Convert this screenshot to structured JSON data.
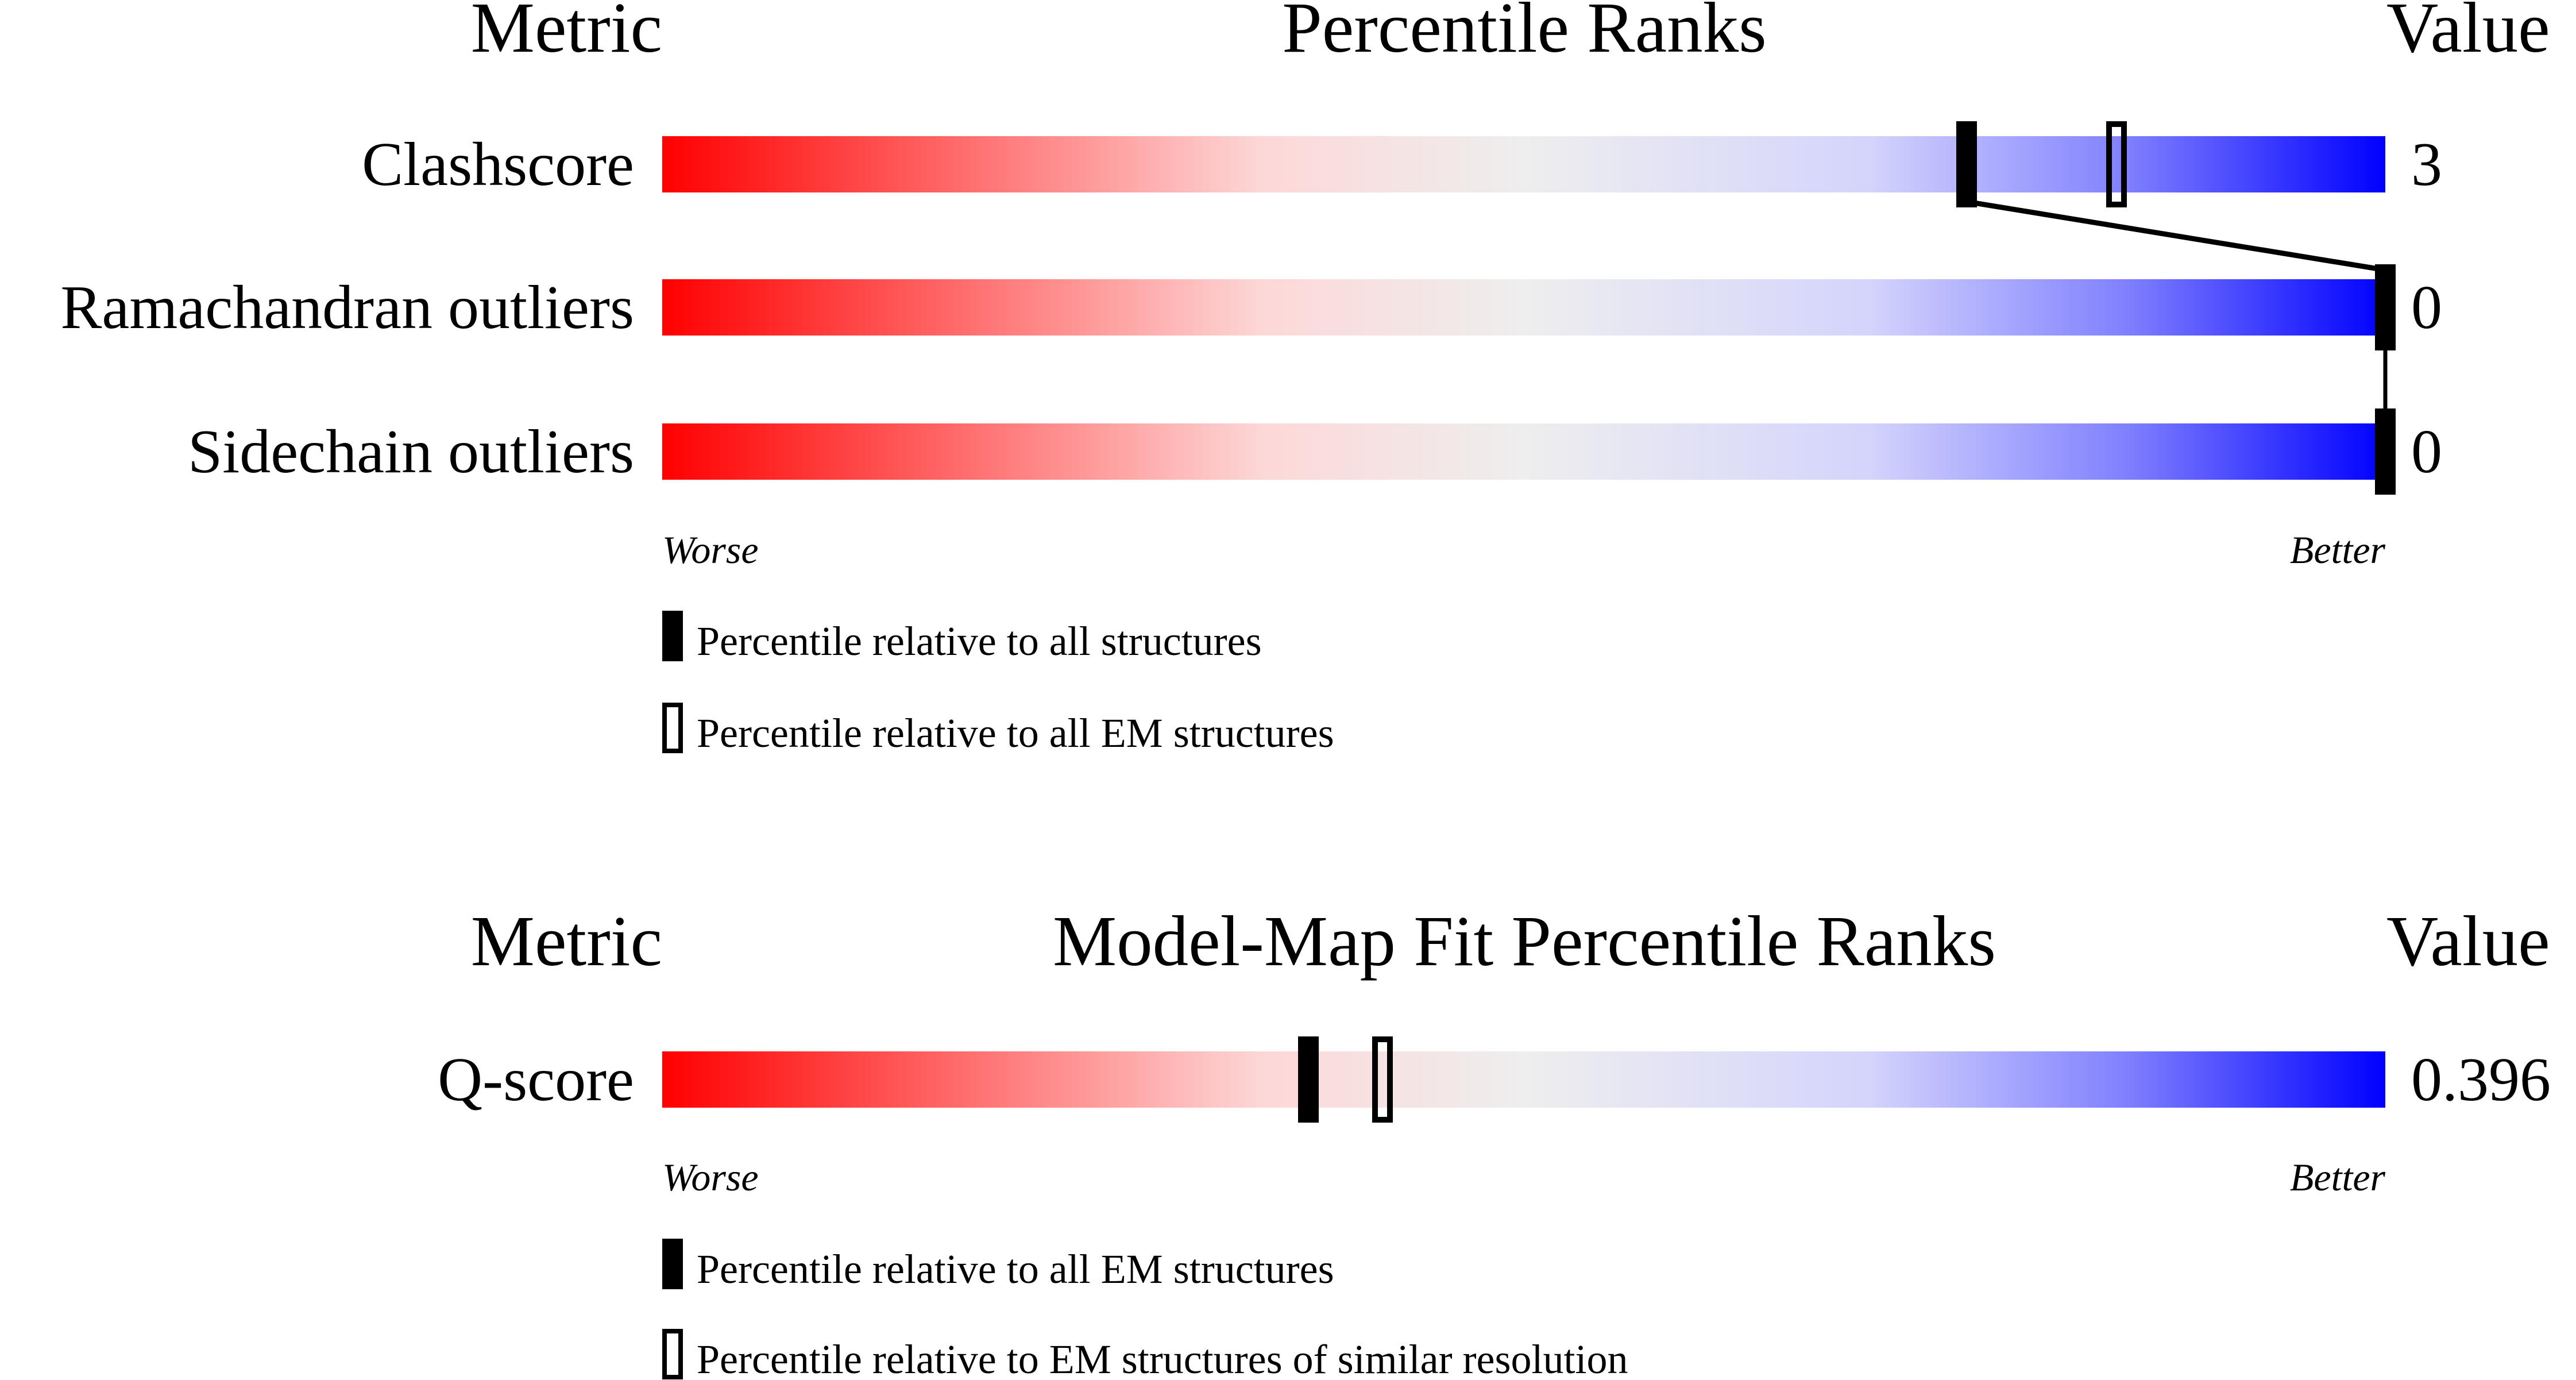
{
  "chart_data": [
    {
      "type": "bar",
      "title": "Percentile Ranks",
      "header_metric": "Metric",
      "header_value": "Value",
      "xlim": [
        0,
        100
      ],
      "axis_low_label": "Worse",
      "axis_high_label": "Better",
      "gradient_colors": [
        "#ff0000",
        "#eeeeee",
        "#0000ff"
      ],
      "rows": [
        {
          "metric": "Clashscore",
          "value": "3",
          "percentile_all": 75.7,
          "percentile_em": 84.4
        },
        {
          "metric": "Ramachandran outliers",
          "value": "0",
          "percentile_all": 100,
          "percentile_em": null
        },
        {
          "metric": "Sidechain outliers",
          "value": "0",
          "percentile_all": 100,
          "percentile_em": null
        }
      ],
      "legend": [
        {
          "marker": "filled",
          "label": "Percentile relative to all structures"
        },
        {
          "marker": "open",
          "label": "Percentile relative to all EM structures"
        }
      ]
    },
    {
      "type": "bar",
      "title": "Model-Map Fit Percentile Ranks",
      "header_metric": "Metric",
      "header_value": "Value",
      "xlim": [
        0,
        100
      ],
      "axis_low_label": "Worse",
      "axis_high_label": "Better",
      "gradient_colors": [
        "#ff0000",
        "#eeeeee",
        "#0000ff"
      ],
      "rows": [
        {
          "metric": "Q-score",
          "value": "0.396",
          "percentile_all": 37.5,
          "percentile_em": 41.8
        }
      ],
      "legend": [
        {
          "marker": "filled",
          "label": "Percentile relative to all EM structures"
        },
        {
          "marker": "open",
          "label": "Percentile relative to EM structures of similar resolution"
        }
      ]
    }
  ]
}
